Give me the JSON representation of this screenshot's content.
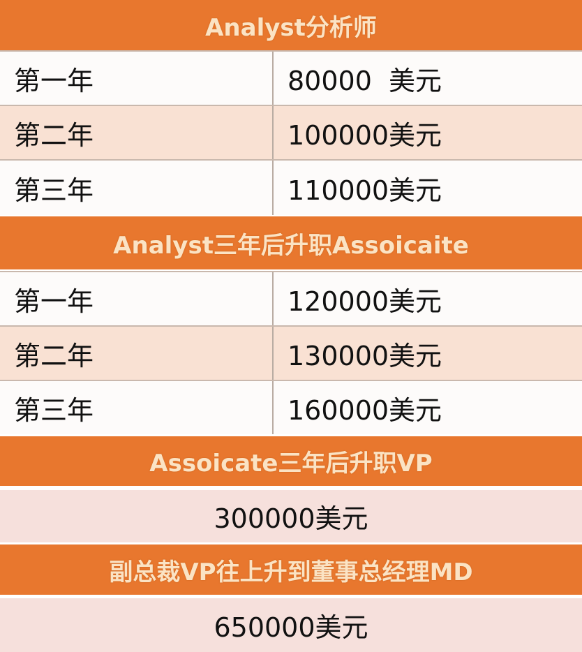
{
  "sections": [
    {
      "header": "Analyst分析师",
      "rows": [
        {
          "year": "第一年",
          "salary": "80000  美元"
        },
        {
          "year": "第二年",
          "salary": "100000美元"
        },
        {
          "year": "第三年",
          "salary": "110000美元"
        }
      ]
    },
    {
      "header": "Analyst三年后升职Assoicaite",
      "rows": [
        {
          "year": "第一年",
          "salary": "120000美元"
        },
        {
          "year": "第二年",
          "salary": "130000美元"
        },
        {
          "year": "第三年",
          "salary": "160000美元"
        }
      ]
    },
    {
      "header": "Assoicate三年后升职VP",
      "salary": "300000美元"
    },
    {
      "header": "副总裁VP往上升到董事总经理MD",
      "salary": "650000美元"
    }
  ],
  "colors": {
    "header": "#E8772E",
    "header_text": "#FBE3C4",
    "row_alt": "#F9E1D3",
    "single_row": "#F6E0DC"
  }
}
